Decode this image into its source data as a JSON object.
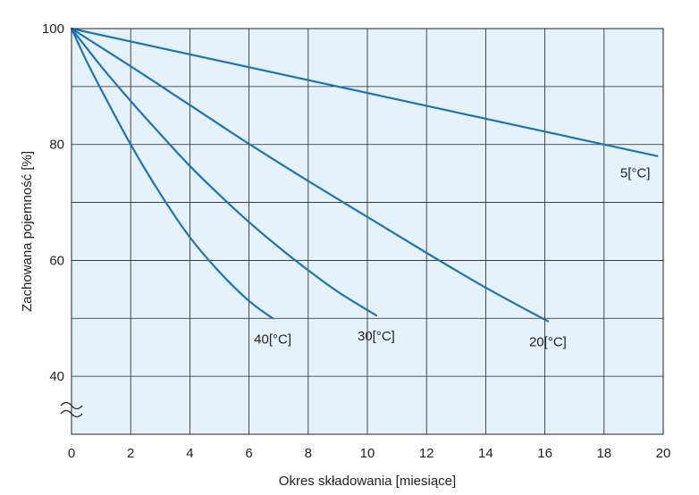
{
  "chart_data": {
    "type": "line",
    "title": "",
    "xlabel": "Okres składowania [miesiące]",
    "ylabel": "Zachowana pojemność [%]",
    "xlim": [
      0,
      20
    ],
    "ylim": [
      30,
      100
    ],
    "xticks": [
      "0",
      "2",
      "4",
      "6",
      "8",
      "10",
      "12",
      "14",
      "16",
      "18",
      "20"
    ],
    "yticks": [
      "40",
      "60",
      "80",
      "100"
    ],
    "grid": true,
    "axis_break": "y",
    "background_color": "#e6f2fb",
    "line_color": "#1e73b4",
    "series": [
      {
        "name": "5[°C]",
        "x": [
          0,
          19.8
        ],
        "y": [
          100,
          78
        ]
      },
      {
        "name": "20[°C]",
        "x": [
          0,
          2,
          4,
          6,
          8,
          10,
          12,
          14,
          16.1
        ],
        "y": [
          100,
          93.5,
          86.8,
          80.1,
          73.7,
          67.5,
          61.3,
          55.3,
          49.5
        ]
      },
      {
        "name": "30[°C]",
        "x": [
          0,
          1,
          2,
          3,
          4,
          5,
          6,
          7,
          8,
          9,
          10.3
        ],
        "y": [
          100,
          93.5,
          87.5,
          81.8,
          76.3,
          71.3,
          66.6,
          62.3,
          58.3,
          54.6,
          50.5
        ]
      },
      {
        "name": "40[°C]",
        "x": [
          0,
          0.5,
          1,
          2,
          3,
          4,
          5,
          6,
          6.8
        ],
        "y": [
          100,
          94.5,
          89.5,
          80.0,
          71.5,
          64.0,
          58.0,
          53.0,
          50
        ]
      }
    ]
  }
}
